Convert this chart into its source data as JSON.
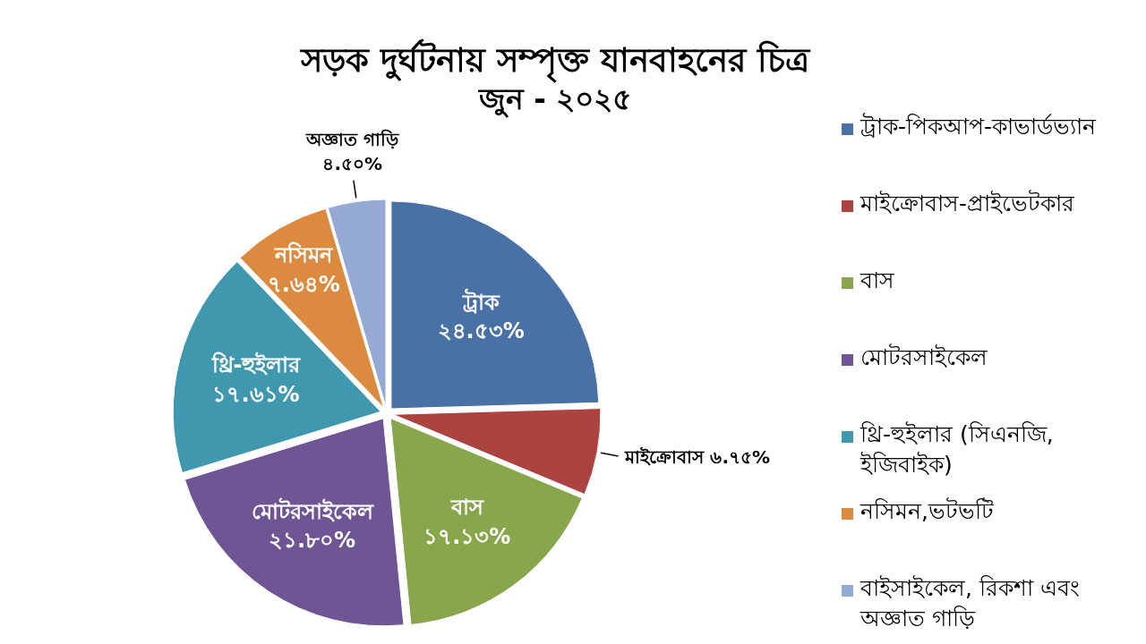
{
  "chart_data": {
    "type": "pie",
    "title": "সড়ক দুর্ঘটনায় সম্পৃক্ত যানবাহনের চিত্র",
    "subtitle": "জুন - ২০২৫",
    "categories": [
      "ট্রাক-পিকআপ-কাভার্ডভ্যান",
      "মাইক্রোবাস-প্রাইভেটকার",
      "বাস",
      "মোটরসাইকেল",
      "থ্রি-হুইলার (সিএনজি, ইজিবাইক)",
      "নসিমন,ভটভটি",
      "বাইসাইকেল, রিকশা এবং অজ্ঞাত গাড়ি"
    ],
    "values": [
      24.53,
      6.75,
      17.13,
      21.8,
      17.61,
      7.64,
      4.5
    ],
    "colors": [
      "#4a71a6",
      "#ab4341",
      "#88a64b",
      "#6f5593",
      "#3f98ae",
      "#dc8a3f",
      "#94aad3"
    ],
    "value_labels": [
      "ট্রাক\n২৪.৫৩%",
      "মাইক্রোবাস ৬.৭৫%",
      "বাস\n১৭.১৩%",
      "মোটরসাইকেল\n২১.৮০%",
      "থ্রি-হুইলার\n১৭.৬১%",
      "নসিমন\n৭.৬৪%",
      "অজ্ঞাত গাড়ি\n৪.৫০%"
    ],
    "legend": "right"
  }
}
